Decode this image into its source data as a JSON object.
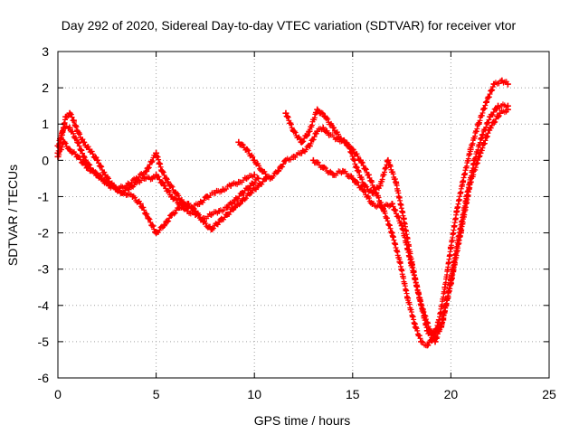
{
  "chart_data": {
    "type": "scatter",
    "title": "Day 292 of 2020, Sidereal Day-to-day VTEC variation (SDTVAR) for receiver vtor",
    "xlabel": "GPS time / hours",
    "ylabel": "SDTVAR / TECUs",
    "xlim": [
      0,
      25
    ],
    "ylim": [
      -6,
      3
    ],
    "x_ticks": [
      0,
      5,
      10,
      15,
      20,
      25
    ],
    "y_ticks": [
      -6,
      -5,
      -4,
      -3,
      -2,
      -1,
      0,
      1,
      2,
      3
    ],
    "x_tick_labels": [
      "0",
      "5",
      "10",
      "15",
      "20",
      "25"
    ],
    "y_tick_labels": [
      "-6",
      "-5",
      "-4",
      "-3",
      "-2",
      "-1",
      "0",
      "1",
      "2",
      "3"
    ],
    "grid": true,
    "legend": "none",
    "marker": "plus",
    "series_color": "#ff0000",
    "series": [
      {
        "name": "track-1",
        "x": [
          0.0,
          0.2,
          0.4,
          0.6,
          0.8,
          1.0,
          1.3,
          1.6,
          2.0,
          2.4,
          2.8,
          3.2,
          3.6,
          4.0,
          4.4,
          4.8,
          5.0,
          5.4,
          5.8,
          6.2,
          6.6,
          7.0,
          7.4,
          7.8,
          8.2,
          8.6,
          9.0,
          9.4,
          9.8,
          10.2
        ],
        "y": [
          0.2,
          0.7,
          1.2,
          1.3,
          1.1,
          0.8,
          0.5,
          0.3,
          0.0,
          -0.4,
          -0.7,
          -0.9,
          -0.8,
          -0.6,
          -0.5,
          -0.5,
          -0.4,
          -0.7,
          -1.0,
          -1.2,
          -1.4,
          -1.5,
          -1.6,
          -1.5,
          -1.4,
          -1.3,
          -1.1,
          -0.9,
          -0.7,
          -0.5
        ]
      },
      {
        "name": "track-2",
        "x": [
          0.0,
          0.3,
          0.6,
          1.0,
          1.4,
          1.8,
          2.2,
          2.6,
          3.0,
          3.4,
          3.8,
          4.2,
          4.6,
          5.0,
          5.4,
          5.8,
          6.2,
          6.6,
          7.0,
          7.4,
          7.8,
          8.2,
          8.6,
          9.0,
          9.4,
          9.8,
          10.2,
          10.6
        ],
        "y": [
          0.4,
          0.9,
          0.9,
          0.5,
          0.0,
          -0.3,
          -0.5,
          -0.7,
          -0.8,
          -0.9,
          -1.0,
          -1.2,
          -1.6,
          -2.0,
          -1.8,
          -1.5,
          -1.3,
          -1.2,
          -1.4,
          -1.7,
          -1.9,
          -1.7,
          -1.5,
          -1.3,
          -1.1,
          -0.9,
          -0.7,
          -0.5
        ]
      },
      {
        "name": "track-3",
        "x": [
          0.0,
          0.3,
          0.6,
          1.0,
          1.5,
          2.0,
          2.5,
          3.0,
          3.5,
          4.0,
          4.5,
          5.0,
          5.3,
          5.6,
          6.0,
          6.4,
          6.8,
          7.2,
          7.6,
          8.0,
          8.4,
          8.8,
          9.2,
          9.6,
          10.0
        ],
        "y": [
          0.1,
          0.5,
          0.3,
          0.1,
          -0.2,
          -0.4,
          -0.6,
          -0.8,
          -0.7,
          -0.5,
          -0.3,
          0.2,
          -0.3,
          -0.6,
          -0.9,
          -1.2,
          -1.3,
          -1.2,
          -1.0,
          -0.9,
          -0.8,
          -0.7,
          -0.6,
          -0.5,
          -0.4
        ]
      },
      {
        "name": "track-4",
        "x": [
          9.2,
          9.6,
          10.0,
          10.4,
          10.8,
          11.2,
          11.6,
          12.0,
          12.4,
          12.8,
          13.2,
          13.5,
          13.8,
          14.2,
          14.6,
          15.0,
          15.4,
          15.8,
          16.2,
          16.6,
          17.0,
          17.4,
          17.8,
          18.2,
          18.5,
          18.8,
          19.1,
          19.4,
          19.7,
          20.0,
          20.3,
          20.6,
          21.0,
          21.4,
          21.8,
          22.2,
          22.6,
          22.9
        ],
        "y": [
          0.5,
          0.3,
          0.0,
          -0.3,
          -0.5,
          -0.3,
          0.0,
          0.1,
          0.2,
          0.4,
          0.8,
          0.9,
          0.7,
          0.6,
          0.5,
          0.3,
          0.0,
          -0.4,
          -0.9,
          -1.4,
          -2.0,
          -2.8,
          -3.8,
          -4.6,
          -5.0,
          -5.1,
          -4.9,
          -4.4,
          -3.5,
          -2.4,
          -1.4,
          -0.6,
          0.3,
          1.0,
          1.6,
          2.1,
          2.2,
          2.1
        ]
      },
      {
        "name": "track-5",
        "x": [
          11.6,
          12.0,
          12.4,
          12.8,
          13.2,
          13.6,
          14.0,
          14.4,
          14.8,
          15.2,
          15.6,
          16.0,
          16.4,
          16.8,
          17.2,
          17.6,
          18.0,
          18.4,
          18.8,
          19.2,
          19.6,
          20.0,
          20.4,
          20.8,
          21.2,
          21.6,
          22.0,
          22.4,
          22.9
        ],
        "y": [
          1.3,
          0.8,
          0.5,
          0.8,
          1.4,
          1.2,
          0.9,
          0.6,
          0.4,
          -0.2,
          -0.7,
          -0.9,
          -0.7,
          0.0,
          -0.6,
          -1.6,
          -2.8,
          -3.8,
          -4.7,
          -5.0,
          -4.4,
          -3.3,
          -2.1,
          -1.0,
          0.0,
          0.7,
          1.2,
          1.5,
          1.5
        ]
      },
      {
        "name": "track-6",
        "x": [
          13.0,
          13.5,
          14.0,
          14.5,
          15.0,
          15.5,
          16.0,
          16.5,
          17.0,
          17.5,
          18.0,
          18.5,
          19.0,
          19.5,
          20.0,
          20.5,
          21.0,
          21.5,
          22.0,
          22.5,
          22.9
        ],
        "y": [
          0.0,
          -0.2,
          -0.4,
          -0.3,
          -0.5,
          -0.8,
          -1.2,
          -1.3,
          -1.2,
          -1.8,
          -2.9,
          -4.0,
          -4.8,
          -4.6,
          -3.4,
          -2.0,
          -0.6,
          0.2,
          0.9,
          1.3,
          1.4
        ]
      }
    ]
  }
}
